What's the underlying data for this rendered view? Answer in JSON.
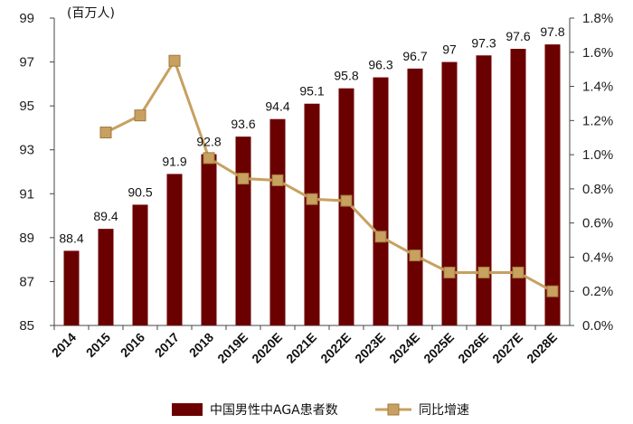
{
  "chart_data": {
    "type": "bar",
    "unit_label": "(百万人)",
    "categories": [
      "2014",
      "2015",
      "2016",
      "2017",
      "2018",
      "2019E",
      "2020E",
      "2021E",
      "2022E",
      "2023E",
      "2024E",
      "2025E",
      "2026E",
      "2027E",
      "2028E"
    ],
    "series": [
      {
        "name": "中国男性中AGA患者数",
        "axis": "left",
        "type": "bar",
        "color": "#6b0000",
        "values": [
          88.4,
          89.4,
          90.5,
          91.9,
          92.8,
          93.6,
          94.4,
          95.1,
          95.8,
          96.3,
          96.7,
          97.0,
          97.3,
          97.6,
          97.8
        ],
        "labels": [
          "88.4",
          "89.4",
          "90.5",
          "91.9",
          "92.8",
          "93.6",
          "94.4",
          "95.1",
          "95.8",
          "96.3",
          "96.7",
          "97",
          "97.3",
          "97.6",
          "97.8"
        ]
      },
      {
        "name": "同比增速",
        "axis": "right",
        "type": "line",
        "color": "#c8a060",
        "values": [
          null,
          1.13,
          1.23,
          1.55,
          0.98,
          0.86,
          0.85,
          0.74,
          0.73,
          0.52,
          0.41,
          0.31,
          0.31,
          0.31,
          0.2
        ]
      }
    ],
    "y_left": {
      "ylim": [
        85,
        99
      ],
      "ticks": [
        "85",
        "87",
        "89",
        "91",
        "93",
        "95",
        "97",
        "99"
      ]
    },
    "y_right": {
      "ylim": [
        0,
        1.8
      ],
      "ticks": [
        "0.0%",
        "0.2%",
        "0.4%",
        "0.6%",
        "0.8%",
        "1.0%",
        "1.2%",
        "1.4%",
        "1.6%",
        "1.8%"
      ]
    },
    "grid": false,
    "legend_position": "bottom"
  }
}
